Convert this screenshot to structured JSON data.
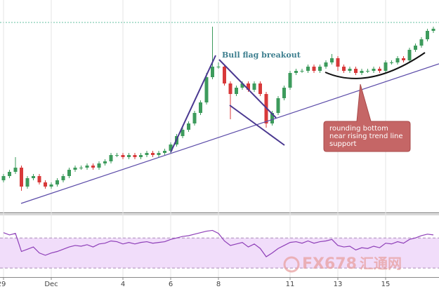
{
  "chart_data": {
    "type": "candlestick",
    "categories": [
      "29",
      null,
      null,
      null,
      null,
      null,
      null,
      null,
      "Dec",
      null,
      null,
      null,
      null,
      null,
      null,
      null,
      null,
      null,
      null,
      null,
      "4",
      null,
      null,
      null,
      null,
      null,
      null,
      null,
      "6",
      null,
      null,
      null,
      null,
      null,
      null,
      null,
      "8",
      null,
      null,
      null,
      null,
      null,
      null,
      null,
      null,
      null,
      null,
      null,
      "11",
      null,
      null,
      null,
      null,
      null,
      null,
      null,
      "13",
      null,
      null,
      null,
      null,
      null,
      null,
      null,
      "15",
      null,
      null,
      null,
      null,
      null,
      null,
      null,
      null
    ],
    "open": [
      15,
      17,
      19,
      21,
      12,
      16,
      17,
      14,
      12,
      13,
      15,
      17,
      20,
      21,
      21,
      22,
      21,
      23,
      24,
      27,
      27,
      26,
      27,
      26,
      27,
      28,
      27,
      28,
      29,
      32,
      36,
      39,
      42,
      47,
      52,
      64,
      69,
      69,
      61,
      56,
      59,
      61,
      58,
      61,
      56,
      42,
      47,
      54,
      59,
      66,
      67,
      67,
      69,
      67,
      69,
      71,
      73,
      69,
      67,
      68,
      66,
      67,
      67,
      68,
      67,
      71,
      71,
      73,
      72,
      77,
      79,
      82,
      86
    ],
    "high": [
      18,
      20,
      26,
      22,
      17,
      18,
      18,
      15,
      14,
      16,
      18,
      21,
      22,
      22,
      23,
      23,
      24,
      25,
      28,
      28,
      28,
      28,
      28,
      28,
      29,
      29,
      29,
      30,
      33,
      37,
      40,
      43,
      48,
      53,
      66,
      88,
      71,
      70,
      62,
      60,
      62,
      62,
      62,
      62,
      57,
      48,
      55,
      60,
      67,
      68,
      68,
      70,
      70,
      70,
      72,
      75,
      74,
      70,
      69,
      69,
      68,
      68,
      69,
      69,
      72,
      72,
      74,
      74,
      78,
      80,
      83,
      87,
      88
    ],
    "low": [
      14,
      16,
      18,
      10,
      11,
      15,
      13,
      11,
      11,
      12,
      14,
      16,
      19,
      20,
      20,
      20,
      20,
      22,
      23,
      26,
      25,
      25,
      25,
      25,
      26,
      26,
      26,
      27,
      28,
      31,
      35,
      38,
      41,
      46,
      51,
      63,
      68,
      60,
      44,
      55,
      58,
      57,
      57,
      55,
      40,
      41,
      46,
      53,
      58,
      65,
      66,
      66,
      66,
      66,
      68,
      70,
      67,
      66,
      66,
      65,
      65,
      66,
      66,
      66,
      66,
      70,
      70,
      71,
      71,
      76,
      78,
      81,
      85
    ],
    "close": [
      17,
      19,
      21,
      12,
      16,
      17,
      14,
      12,
      13,
      15,
      17,
      20,
      21,
      21,
      22,
      21,
      23,
      24,
      27,
      27,
      26,
      27,
      26,
      27,
      28,
      27,
      28,
      29,
      32,
      36,
      39,
      42,
      47,
      52,
      64,
      69,
      69,
      61,
      56,
      59,
      61,
      58,
      61,
      56,
      42,
      47,
      54,
      59,
      66,
      67,
      67,
      69,
      67,
      69,
      71,
      73,
      69,
      67,
      68,
      66,
      67,
      67,
      68,
      67,
      71,
      71,
      73,
      72,
      77,
      79,
      82,
      86,
      87
    ],
    "up_color": "#3d9b5c",
    "down_color": "#d8393a",
    "ylim": [
      0,
      100
    ],
    "level": 90,
    "level_color": "#66c2a0",
    "rsi": {
      "values": [
        77,
        74,
        76,
        52,
        55,
        58,
        50,
        47,
        50,
        52,
        55,
        58,
        60,
        59,
        61,
        58,
        62,
        63,
        66,
        65,
        62,
        64,
        62,
        64,
        65,
        63,
        64,
        65,
        68,
        70,
        72,
        73,
        75,
        77,
        79,
        80,
        76,
        66,
        60,
        62,
        64,
        58,
        62,
        56,
        45,
        50,
        56,
        60,
        64,
        65,
        63,
        66,
        63,
        65,
        66,
        68,
        60,
        58,
        59,
        54,
        57,
        56,
        59,
        57,
        63,
        62,
        65,
        63,
        68,
        70,
        73,
        75,
        74
      ],
      "color": "#8e3fb8",
      "ylim": [
        18,
        100
      ],
      "levels": [
        30,
        70
      ],
      "band_color": "#f1ddfa"
    },
    "annotations": {
      "flag": "Bull flag breakout",
      "note": [
        "rounding bottom",
        "near rising trend line",
        "support"
      ]
    },
    "watermark": [
      "FX678",
      "汇通网"
    ],
    "grid": true
  }
}
